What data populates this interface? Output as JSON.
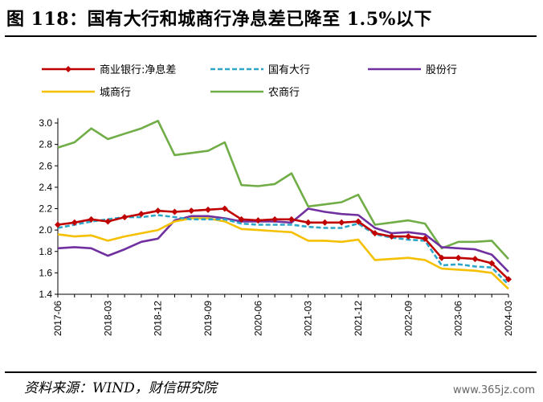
{
  "header": {
    "title": "图 118：国有大行和城商行净息差已降至 1.5%以下"
  },
  "footer": {
    "source": "资料来源：WIND，财信研究院",
    "watermark": "www.365jz.com"
  },
  "chart_data": {
    "type": "line",
    "title": "",
    "xlabel": "",
    "ylabel": "",
    "ylim": [
      1.4,
      3.0
    ],
    "yticks": [
      "1.4",
      "1.6",
      "1.8",
      "2.0",
      "2.2",
      "2.4",
      "2.6",
      "2.8",
      "3.0"
    ],
    "x": [
      "2017-06",
      "2017-09",
      "2017-12",
      "2018-03",
      "2018-06",
      "2018-09",
      "2018-12",
      "2019-03",
      "2019-06",
      "2019-09",
      "2019-12",
      "2020-03",
      "2020-06",
      "2020-09",
      "2020-12",
      "2021-03",
      "2021-06",
      "2021-09",
      "2021-12",
      "2022-03",
      "2022-06",
      "2022-09",
      "2022-12",
      "2023-03",
      "2023-06",
      "2023-09",
      "2023-12",
      "2024-03"
    ],
    "xtick_labels": [
      "2017-06",
      "2018-03",
      "2018-12",
      "2019-09",
      "2020-06",
      "2021-03",
      "2021-12",
      "2022-09",
      "2023-06",
      "2024-03"
    ],
    "legend_position": "top",
    "grid": false,
    "series": [
      {
        "name": "商业银行:净息差",
        "color": "#c00000",
        "style": "solid-diamond",
        "values": [
          2.05,
          2.07,
          2.1,
          2.08,
          2.12,
          2.15,
          2.18,
          2.17,
          2.18,
          2.19,
          2.2,
          2.1,
          2.09,
          2.1,
          2.1,
          2.07,
          2.07,
          2.07,
          2.08,
          1.97,
          1.94,
          1.94,
          1.92,
          1.74,
          1.74,
          1.73,
          1.69,
          1.54
        ]
      },
      {
        "name": "国有大行",
        "color": "#2ea6c8",
        "style": "dashed",
        "values": [
          2.02,
          2.05,
          2.08,
          2.1,
          2.12,
          2.12,
          2.14,
          2.12,
          2.1,
          2.1,
          2.1,
          2.06,
          2.05,
          2.05,
          2.05,
          2.03,
          2.02,
          2.02,
          2.06,
          1.96,
          1.93,
          1.91,
          1.9,
          1.67,
          1.68,
          1.66,
          1.65,
          1.49
        ]
      },
      {
        "name": "股份行",
        "color": "#7030a0",
        "style": "solid",
        "values": [
          1.83,
          1.84,
          1.83,
          1.76,
          1.82,
          1.89,
          1.92,
          2.09,
          2.13,
          2.13,
          2.11,
          2.08,
          2.08,
          2.08,
          2.07,
          2.2,
          2.17,
          2.15,
          2.14,
          2.02,
          1.97,
          1.98,
          1.96,
          1.84,
          1.83,
          1.82,
          1.77,
          1.61
        ]
      },
      {
        "name": "城商行",
        "color": "#f5c000",
        "style": "solid",
        "values": [
          1.96,
          1.94,
          1.95,
          1.9,
          1.94,
          1.97,
          2.0,
          2.08,
          2.11,
          2.11,
          2.08,
          2.01,
          2.0,
          1.99,
          1.98,
          1.9,
          1.9,
          1.89,
          1.91,
          1.72,
          1.73,
          1.74,
          1.72,
          1.64,
          1.63,
          1.62,
          1.6,
          1.45
        ]
      },
      {
        "name": "农商行",
        "color": "#70ad47",
        "style": "solid",
        "values": [
          2.77,
          2.82,
          2.95,
          2.85,
          2.9,
          2.95,
          3.02,
          2.7,
          2.72,
          2.74,
          2.82,
          2.42,
          2.41,
          2.43,
          2.53,
          2.22,
          2.24,
          2.26,
          2.33,
          2.05,
          2.07,
          2.09,
          2.06,
          1.83,
          1.89,
          1.89,
          1.9,
          1.73
        ]
      }
    ]
  }
}
